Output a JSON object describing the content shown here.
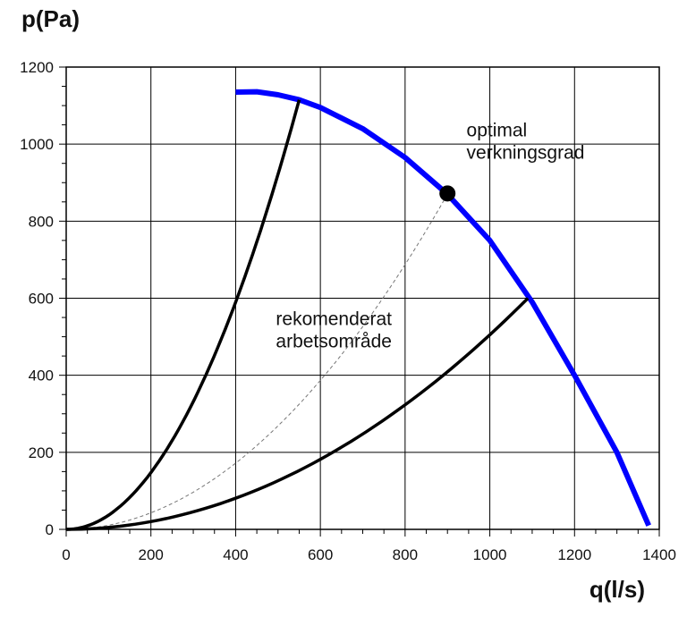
{
  "chart_data": {
    "type": "line",
    "title": "",
    "xlabel": "q(l/s)",
    "ylabel": "p(Pa)",
    "xlim": [
      0,
      1400
    ],
    "ylim": [
      0,
      1200
    ],
    "x_ticks": [
      0,
      200,
      400,
      600,
      800,
      1000,
      1200,
      1400
    ],
    "y_ticks": [
      0,
      200,
      400,
      600,
      800,
      1000,
      1200
    ],
    "x_tick_labels": [
      "0",
      "200",
      "400",
      "600",
      "800",
      "1000",
      "1200",
      "1400"
    ],
    "y_tick_labels": [
      "0",
      "200",
      "400",
      "600",
      "800",
      "1000",
      "1200"
    ],
    "grid": true,
    "series": [
      {
        "kind": "fan-curve",
        "color": "#0000ff",
        "x": [
          400,
          450,
          500,
          550,
          600,
          700,
          800,
          900,
          1000,
          1100,
          1200,
          1300,
          1375
        ],
        "y": [
          1135,
          1136,
          1128,
          1115,
          1095,
          1040,
          965,
          870,
          750,
          590,
          400,
          200,
          10
        ]
      },
      {
        "kind": "system-curve",
        "style": "solid",
        "color": "#000000",
        "x_end": 550,
        "y_end": 1115
      },
      {
        "kind": "system-curve",
        "style": "dashed",
        "color": "#777777",
        "x_end": 900,
        "y_end": 870
      },
      {
        "kind": "system-curve",
        "style": "solid",
        "color": "#000000",
        "x_end": 1090,
        "y_end": 600
      }
    ],
    "points": [
      {
        "x": 900,
        "y": 872,
        "color": "#000000"
      }
    ],
    "annotations": [
      {
        "lines": [
          "optimal",
          "verkningsgrad"
        ],
        "x": 945,
        "y": 1020
      },
      {
        "lines": [
          "rekomenderat",
          "arbetsområde"
        ],
        "x": 495,
        "y": 530
      }
    ]
  }
}
